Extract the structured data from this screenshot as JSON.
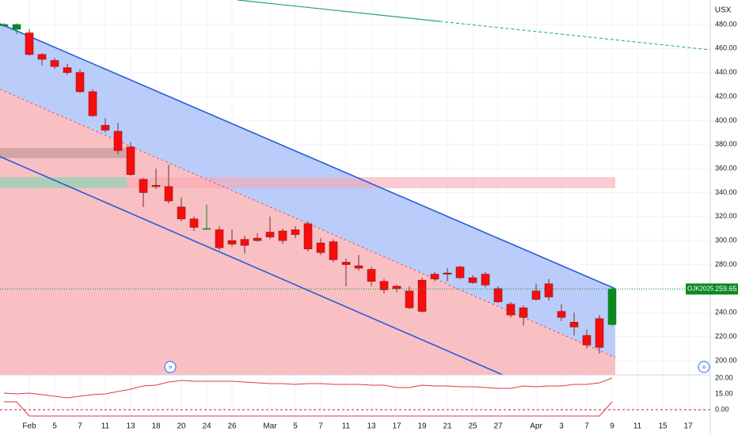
{
  "chart_data": [
    {
      "type": "candlestick",
      "currency": "USX",
      "symbol": "OJK2025",
      "categories": [
        null,
        null,
        "Feb",
        null,
        "5",
        null,
        "7",
        null,
        "11",
        null,
        "13",
        null,
        "18",
        null,
        "20",
        null,
        "24",
        null,
        "26",
        null,
        null,
        "Mar",
        null,
        "5",
        null,
        "7",
        null,
        "11",
        null,
        "13",
        null,
        "17",
        null,
        "19",
        null,
        "21",
        null,
        "25",
        null,
        "27",
        null,
        null,
        "Apr",
        null,
        "3",
        null,
        "7",
        null,
        "9",
        null,
        "11",
        null,
        "15",
        null,
        "17"
      ],
      "open": [
        479,
        476,
        473,
        455,
        450,
        444,
        440,
        424,
        396,
        391,
        378,
        351,
        346,
        345,
        328,
        318,
        310,
        309,
        300,
        301,
        302,
        307,
        308,
        309,
        314,
        298,
        299,
        282,
        279,
        276,
        266,
        262,
        258,
        267,
        272,
        273,
        278,
        269,
        272,
        260,
        247,
        244,
        258,
        264,
        241,
        232,
        221,
        235,
        230,
        null,
        null,
        null,
        null,
        null,
        null
      ],
      "high": [
        481,
        481,
        476,
        456,
        452,
        447,
        443,
        426,
        402,
        398,
        382,
        352,
        360,
        363,
        336,
        320,
        330,
        312,
        309,
        304,
        306,
        320,
        310,
        312,
        316,
        302,
        301,
        285,
        288,
        278,
        268,
        263,
        262,
        269,
        274,
        277,
        279,
        271,
        274,
        262,
        249,
        246,
        264,
        268,
        247,
        240,
        226,
        238,
        261,
        null,
        null,
        null,
        null,
        null,
        null
      ],
      "low": [
        478,
        472,
        454,
        446,
        443,
        438,
        423,
        403,
        390,
        372,
        354,
        328,
        343,
        331,
        316,
        308,
        309,
        292,
        295,
        289,
        299,
        301,
        297,
        302,
        291,
        288,
        282,
        262,
        275,
        262,
        256,
        257,
        243,
        240,
        266,
        266,
        268,
        264,
        261,
        248,
        236,
        229,
        250,
        250,
        233,
        221,
        210,
        206,
        229,
        null,
        null,
        null,
        null,
        null,
        null
      ],
      "close": [
        480,
        480,
        455,
        451,
        445,
        440,
        424,
        404,
        392,
        375,
        355,
        340,
        345,
        333,
        318,
        311,
        310,
        294,
        297,
        296,
        300,
        303,
        300,
        305,
        293,
        290,
        284,
        280,
        277,
        266,
        259,
        260,
        244,
        241,
        268,
        272,
        269,
        265,
        263,
        249,
        238,
        236,
        251,
        253,
        236,
        228,
        213,
        211,
        259.65,
        null,
        null,
        null,
        null,
        null,
        null
      ],
      "up_color": "#0b8a22",
      "down_color": "#f70d0d",
      "ylim": [
        188.1,
        500.4
      ],
      "yticks": [
        {
          "value": 200,
          "label": "200.00"
        },
        {
          "value": 220,
          "label": "220.00"
        },
        {
          "value": 240,
          "label": "240.00"
        },
        {
          "value": 260,
          "label": "260.00"
        },
        {
          "value": 280,
          "label": "280.00"
        },
        {
          "value": 300,
          "label": "300.00"
        },
        {
          "value": 320,
          "label": "320.00"
        },
        {
          "value": 340,
          "label": "340.00"
        },
        {
          "value": 360,
          "label": "360.00"
        },
        {
          "value": 380,
          "label": "380.00"
        },
        {
          "value": 400,
          "label": "400.00"
        },
        {
          "value": 420,
          "label": "420.00"
        },
        {
          "value": 440,
          "label": "440.00"
        },
        {
          "value": 460,
          "label": "460.00"
        },
        {
          "value": 480,
          "label": "480.00"
        }
      ],
      "grid": true
    },
    {
      "type": "line",
      "color": "#e0393e",
      "values": [
        15.25,
        15,
        15.25,
        14.75,
        14.25,
        13.75,
        14.25,
        14.75,
        15,
        15.75,
        16.5,
        17.5,
        17.75,
        18.75,
        19.25,
        19,
        19,
        19,
        19,
        18.75,
        18.5,
        18.25,
        18.25,
        18,
        18.25,
        18.25,
        18,
        18,
        18,
        17.75,
        17.75,
        17,
        17,
        17.75,
        17.5,
        17.5,
        17.25,
        17.25,
        17,
        16.75,
        16.75,
        17.5,
        17.25,
        17.5,
        17.5,
        18,
        18,
        18.5,
        20
      ],
      "ylim": [
        2,
        21
      ],
      "yticks": [
        {
          "value": 20,
          "label": "20.00"
        },
        {
          "value": 15,
          "label": "15.00"
        }
      ]
    },
    {
      "type": "line",
      "color": "#e0393e",
      "values": [
        2.5,
        2.5,
        -2,
        -2,
        -2,
        -2,
        -2,
        -2,
        -2,
        -2,
        -2,
        -2,
        -2,
        -2,
        -2,
        -2,
        -2,
        -2,
        -2,
        -2,
        -2,
        -2,
        -2,
        -2,
        -2,
        -2,
        -2,
        -2,
        -2,
        -2,
        -2,
        -2,
        -2,
        -2,
        -2,
        -2,
        -2,
        -2,
        -2,
        -2,
        -2,
        -2,
        -2,
        -2,
        -2,
        -2,
        -2,
        -2,
        2.5
      ],
      "ylim": [
        -8,
        11
      ],
      "yticks": [
        {
          "value": 0,
          "label": "0.00"
        }
      ]
    }
  ]
}
